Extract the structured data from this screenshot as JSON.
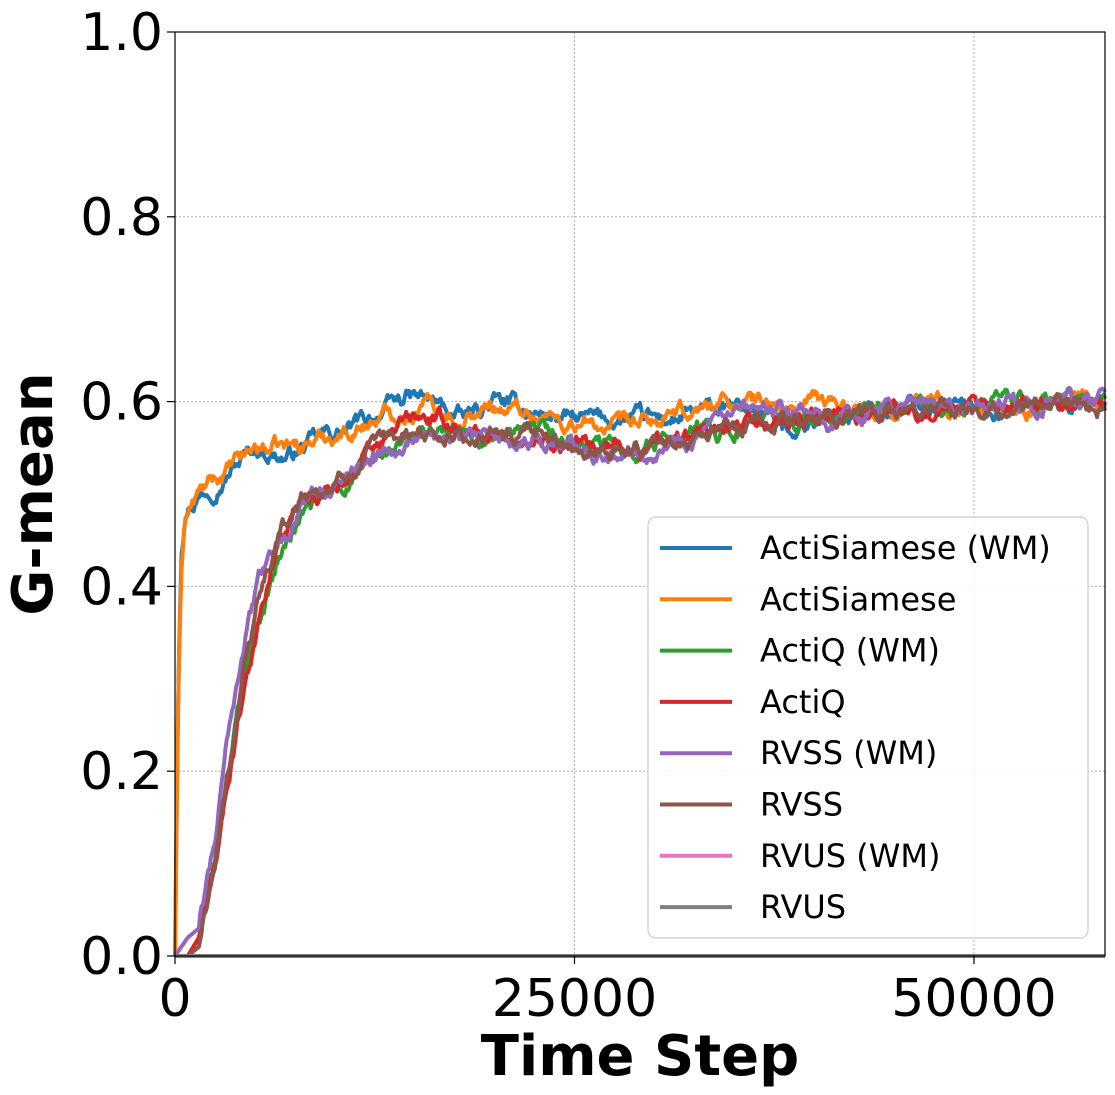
{
  "chart_data": {
    "type": "line",
    "title": "",
    "xlabel": "Time Step",
    "ylabel": "G-mean",
    "xlim": [
      0,
      58200
    ],
    "ylim": [
      0,
      1
    ],
    "xticks": [
      0,
      25000,
      50000
    ],
    "xtick_labels": [
      "0",
      "25000",
      "50000"
    ],
    "yticks": [
      0,
      0.2,
      0.4,
      0.6,
      0.8,
      1.0
    ],
    "ytick_labels": [
      "0.0",
      "0.2",
      "0.4",
      "0.6",
      "0.8",
      "1.0"
    ],
    "grid": true,
    "legend_position": "lower-right",
    "series": [
      {
        "name": "ActiSiamese (WM)",
        "color": "#1f77b4",
        "x": [
          0,
          200,
          400,
          600,
          800,
          1500,
          3000,
          5000,
          7000,
          9000,
          11000,
          13000,
          14500,
          16000,
          18000,
          20000,
          22000,
          25000,
          28000,
          31000,
          34000,
          37000,
          38000,
          40000,
          44000,
          48000,
          52000,
          56000,
          58200
        ],
        "y": [
          0.0,
          0.3,
          0.45,
          0.48,
          0.49,
          0.5,
          0.52,
          0.55,
          0.54,
          0.56,
          0.57,
          0.59,
          0.605,
          0.6,
          0.58,
          0.6,
          0.59,
          0.58,
          0.58,
          0.58,
          0.59,
          0.59,
          0.57,
          0.58,
          0.59,
          0.6,
          0.59,
          0.6,
          0.6
        ]
      },
      {
        "name": "ActiSiamese",
        "color": "#ff7f0e",
        "x": [
          0,
          200,
          400,
          600,
          800,
          1500,
          3000,
          5000,
          7000,
          9000,
          11000,
          13000,
          14500,
          16000,
          18000,
          20000,
          22000,
          25000,
          28000,
          31000,
          34000,
          37000,
          38000,
          40000,
          44000,
          48000,
          52000,
          56000,
          58200
        ],
        "y": [
          0.0,
          0.28,
          0.42,
          0.47,
          0.48,
          0.5,
          0.52,
          0.55,
          0.55,
          0.56,
          0.57,
          0.585,
          0.59,
          0.6,
          0.58,
          0.595,
          0.59,
          0.575,
          0.57,
          0.58,
          0.6,
          0.6,
          0.59,
          0.6,
          0.59,
          0.6,
          0.59,
          0.6,
          0.6
        ]
      },
      {
        "name": "ActiQ (WM)",
        "color": "#2ca02c",
        "x": [
          0,
          800,
          1500,
          2500,
          3500,
          4500,
          5500,
          6500,
          8000,
          10000,
          12000,
          14000,
          16000,
          18000,
          20000,
          23000,
          26000,
          29000,
          32000,
          35000,
          38000,
          41000,
          44000,
          47000,
          50000,
          53000,
          56000,
          58200
        ],
        "y": [
          0.0,
          0.0,
          0.02,
          0.1,
          0.22,
          0.32,
          0.38,
          0.43,
          0.48,
          0.5,
          0.53,
          0.55,
          0.57,
          0.56,
          0.56,
          0.56,
          0.55,
          0.55,
          0.57,
          0.57,
          0.58,
          0.58,
          0.59,
          0.59,
          0.59,
          0.6,
          0.6,
          0.6
        ]
      },
      {
        "name": "ActiQ",
        "color": "#d62728",
        "x": [
          0,
          800,
          1500,
          2500,
          3500,
          4500,
          5500,
          6500,
          8000,
          10000,
          12000,
          13500,
          14500,
          16000,
          18000,
          20000,
          23000,
          26000,
          29000,
          32000,
          35000,
          38000,
          41000,
          44000,
          47000,
          50000,
          53000,
          56000,
          58200
        ],
        "y": [
          0.0,
          0.0,
          0.02,
          0.1,
          0.21,
          0.31,
          0.38,
          0.45,
          0.5,
          0.51,
          0.54,
          0.56,
          0.58,
          0.58,
          0.57,
          0.56,
          0.56,
          0.55,
          0.55,
          0.56,
          0.57,
          0.58,
          0.58,
          0.59,
          0.59,
          0.59,
          0.6,
          0.6,
          0.6
        ]
      },
      {
        "name": "RVSS (WM)",
        "color": "#9467bd",
        "x": [
          0,
          800,
          1500,
          2500,
          3500,
          4500,
          5500,
          6500,
          8000,
          10000,
          12000,
          14000,
          16000,
          18000,
          20000,
          23000,
          26000,
          29000,
          32000,
          35000,
          38000,
          41000,
          44000,
          47000,
          50000,
          53000,
          56000,
          58200
        ],
        "y": [
          0.0,
          0.02,
          0.03,
          0.12,
          0.26,
          0.36,
          0.42,
          0.45,
          0.49,
          0.51,
          0.54,
          0.56,
          0.57,
          0.56,
          0.56,
          0.56,
          0.55,
          0.55,
          0.56,
          0.58,
          0.59,
          0.58,
          0.59,
          0.6,
          0.59,
          0.6,
          0.6,
          0.6
        ]
      },
      {
        "name": "RVSS",
        "color": "#8c564b",
        "x": [
          0,
          800,
          1500,
          2500,
          3500,
          4500,
          5500,
          6500,
          8000,
          10000,
          12000,
          14000,
          16000,
          18000,
          20000,
          23000,
          26000,
          29000,
          32000,
          35000,
          38000,
          41000,
          44000,
          47000,
          50000,
          53000,
          56000,
          58200
        ],
        "y": [
          0.0,
          0.0,
          0.01,
          0.1,
          0.22,
          0.33,
          0.4,
          0.45,
          0.5,
          0.51,
          0.54,
          0.56,
          0.57,
          0.56,
          0.56,
          0.56,
          0.55,
          0.55,
          0.56,
          0.57,
          0.58,
          0.58,
          0.59,
          0.59,
          0.59,
          0.6,
          0.6,
          0.59
        ]
      },
      {
        "name": "RVUS (WM)",
        "color": "#e377c2",
        "x": [
          0,
          58200
        ],
        "y": [
          0.0,
          0.0
        ]
      },
      {
        "name": "RVUS",
        "color": "#7f7f7f",
        "x": [
          0,
          58200
        ],
        "y": [
          0.0,
          0.0
        ]
      }
    ]
  }
}
